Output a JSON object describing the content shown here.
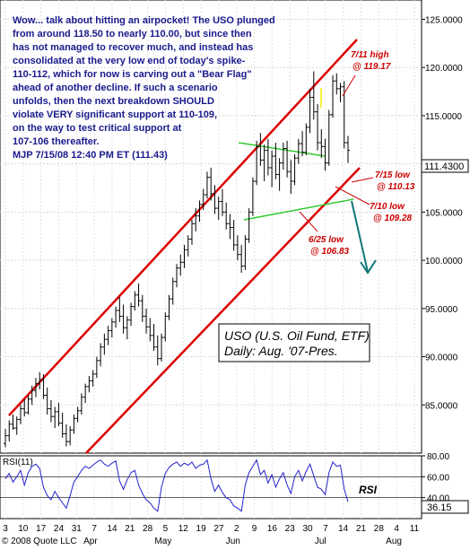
{
  "chart_data": [
    {
      "type": "line",
      "title": "USO (U.S. Oil Fund, ETF)",
      "subtitle": "Daily: Aug. '07-Pres.",
      "ylim": [
        80,
        127
      ],
      "yticks": [
        "125.0000",
        "120.0000",
        "115.0000",
        "110.0000",
        "105.0000",
        "100.0000",
        "95.0000",
        "90.0000",
        "85.0000"
      ],
      "last_price_label": "111.4300",
      "x_tick_labels": [
        "3",
        "10",
        "17",
        "24",
        "31",
        "7",
        "14",
        "21",
        "28",
        "5",
        "12",
        "19",
        "27",
        "2",
        "9",
        "16",
        "23",
        "30",
        "7",
        "14",
        "21",
        "28",
        "4",
        "11"
      ],
      "month_labels": [
        "Apr",
        "May",
        "Jun",
        "Jul",
        "Aug"
      ],
      "copyright": "© 2008 Quote LLC",
      "commentary": [
        "Wow... talk about hitting an airpocket!  The USO plunged",
        "from around 118.50 to nearly 110.00, but since then",
        "has not managed to recover much, and instead has",
        "consolidated at the very low end of today's spike-",
        "110-112, which for now is carving out a \"Bear Flag\"",
        "ahead of another decline. If such a scenario",
        "unfolds, then the next breakdown SHOULD",
        "violate VERY significant support at 110-109,",
        "on the way to test critical support at",
        "107-106 thereafter.",
        "MJP 7/15/08  12:40 PM ET (111.43)"
      ],
      "annotations": [
        {
          "line1": "7/11 high",
          "line2": "@ 119.17"
        },
        {
          "line1": "7/15 low",
          "line2": "@ 110.13"
        },
        {
          "line1": "7/10 low",
          "line2": "@ 109.28"
        },
        {
          "line1": "6/25 low",
          "line2": "@ 106.83"
        }
      ],
      "ohlc": [
        [
          81,
          82.5,
          80.6,
          81.8
        ],
        [
          81.8,
          83.4,
          81.2,
          83
        ],
        [
          83,
          84,
          82.4,
          82.6
        ],
        [
          82.6,
          83.8,
          81.9,
          83.5
        ],
        [
          83.5,
          85,
          83,
          84.6
        ],
        [
          84.6,
          85.6,
          83.8,
          84.2
        ],
        [
          84.2,
          86,
          84,
          85.6
        ],
        [
          85.6,
          87,
          85,
          86.5
        ],
        [
          86.5,
          87.8,
          85.8,
          87.2
        ],
        [
          87.2,
          88.4,
          86.6,
          87.6
        ],
        [
          87.6,
          88.2,
          85.6,
          86
        ],
        [
          86,
          86.8,
          84,
          84.6
        ],
        [
          84.6,
          85.5,
          83.2,
          83.8
        ],
        [
          83.8,
          84.8,
          82.6,
          84.3
        ],
        [
          84.3,
          85.2,
          82.8,
          83.1
        ],
        [
          83.1,
          84.2,
          81.6,
          82
        ],
        [
          82,
          83,
          80.7,
          81.2
        ],
        [
          81.2,
          82.8,
          80.8,
          82.4
        ],
        [
          82.4,
          84,
          82,
          83.6
        ],
        [
          83.6,
          84.8,
          83.2,
          84.4
        ],
        [
          84.4,
          86.2,
          84,
          85.8
        ],
        [
          85.8,
          87.2,
          85.2,
          86.9
        ],
        [
          86.9,
          88,
          86.3,
          87.5
        ],
        [
          87.5,
          88.6,
          86.9,
          88.2
        ],
        [
          88.2,
          90,
          87.8,
          89.6
        ],
        [
          89.6,
          91.4,
          89,
          91
        ],
        [
          91,
          92.4,
          90.2,
          91.8
        ],
        [
          91.8,
          93.2,
          91.2,
          92.7
        ],
        [
          92.7,
          94,
          92,
          93.6
        ],
        [
          93.6,
          95.2,
          93,
          94.8
        ],
        [
          94.8,
          96.2,
          93.6,
          94.2
        ],
        [
          94.2,
          95.4,
          92.4,
          93
        ],
        [
          93,
          94.2,
          91.8,
          93.8
        ],
        [
          93.8,
          95.6,
          93.2,
          95.2
        ],
        [
          95.2,
          96.8,
          94.8,
          96.4
        ],
        [
          96.4,
          97.6,
          95.2,
          95.8
        ],
        [
          95.8,
          96.4,
          93.6,
          94.2
        ],
        [
          94.2,
          95,
          92.4,
          93.1
        ],
        [
          93.1,
          94,
          91.6,
          92.2
        ],
        [
          92.2,
          93.4,
          90.6,
          91
        ],
        [
          91,
          92.2,
          89.1,
          89.8
        ],
        [
          89.8,
          92.4,
          89.5,
          92
        ],
        [
          92,
          94.6,
          91.6,
          94.2
        ],
        [
          94.2,
          96.4,
          93.8,
          96
        ],
        [
          96,
          98.2,
          95.4,
          97.8
        ],
        [
          97.8,
          99.6,
          97.2,
          99.2
        ],
        [
          99.2,
          100.6,
          98.4,
          99.8
        ],
        [
          99.8,
          101.6,
          99.2,
          101.1
        ],
        [
          101.1,
          102.6,
          100.4,
          102.2
        ],
        [
          102.2,
          104.2,
          101.6,
          103.8
        ],
        [
          103.8,
          105.4,
          103,
          104.6
        ],
        [
          104.6,
          106.2,
          104,
          105.8
        ],
        [
          105.8,
          107.4,
          105.2,
          106.8
        ],
        [
          106.8,
          109.2,
          106.4,
          108.6
        ],
        [
          108.6,
          109.6,
          106.2,
          106.9
        ],
        [
          106.9,
          107.8,
          104.8,
          105.4
        ],
        [
          105.4,
          106.6,
          104.2,
          106.1
        ],
        [
          106.1,
          107.4,
          104.6,
          105
        ],
        [
          105,
          106,
          103.2,
          103.8
        ],
        [
          103.8,
          104.8,
          102.2,
          103.4
        ],
        [
          103.4,
          104.2,
          101,
          101.6
        ],
        [
          101.6,
          102.6,
          100,
          100.6
        ],
        [
          100.6,
          101.6,
          98.7,
          99.4
        ],
        [
          99.4,
          102.6,
          99,
          102.2
        ],
        [
          102.2,
          105.4,
          101.8,
          105
        ],
        [
          105,
          108.6,
          104.6,
          108.2
        ],
        [
          108.2,
          112.4,
          107.8,
          111.8
        ],
        [
          111.8,
          113.2,
          109.8,
          110.4
        ],
        [
          110.4,
          112,
          108.2,
          111.4
        ],
        [
          111.4,
          112.6,
          108.8,
          109.6
        ],
        [
          109.6,
          111.4,
          107.6,
          110.8
        ],
        [
          110.8,
          112.2,
          108.4,
          108.9
        ],
        [
          108.9,
          110.6,
          107.2,
          110.1
        ],
        [
          110.1,
          112.2,
          109.4,
          111.6
        ],
        [
          111.6,
          112.4,
          108.6,
          109.2
        ],
        [
          109.2,
          110.4,
          106.9,
          108.2
        ],
        [
          108.2,
          111,
          107.8,
          110.6
        ],
        [
          110.6,
          112.6,
          110,
          112.1
        ],
        [
          112.1,
          113.4,
          110.8,
          111.2
        ],
        [
          111.2,
          114.2,
          110.9,
          113.8
        ],
        [
          113.8,
          117.8,
          113.2,
          116.9
        ],
        [
          116.9,
          119.6,
          114.6,
          115.4
        ],
        [
          115.4,
          116.2,
          111.4,
          112.2
        ],
        [
          112.2,
          113.6,
          110.6,
          111.8
        ],
        [
          111.8,
          112.6,
          109.3,
          110.1
        ],
        [
          110.1,
          115.6,
          109.8,
          115.1
        ],
        [
          115.1,
          119.2,
          114.8,
          118.6
        ],
        [
          118.6,
          119.4,
          117.2,
          117.8
        ],
        [
          117.8,
          118.4,
          116.4,
          118
        ],
        [
          118,
          118.6,
          111.6,
          112.2
        ],
        [
          112.2,
          112.9,
          110.1,
          111.4
        ]
      ],
      "rsi": {
        "ylim": [
          20,
          80
        ],
        "ticks": [
          "80.00",
          "60.00",
          "40.00"
        ],
        "label": "RSI(11)",
        "side_label": "RSI",
        "last_label": "36.15",
        "values": [
          58,
          63,
          55,
          60,
          66,
          52,
          64,
          70,
          72,
          68,
          50,
          42,
          38,
          46,
          40,
          35,
          30,
          42,
          55,
          60,
          66,
          70,
          68,
          71,
          74,
          76,
          72,
          70,
          73,
          75,
          56,
          48,
          57,
          64,
          66,
          52,
          44,
          38,
          35,
          30,
          27,
          50,
          63,
          69,
          72,
          74,
          70,
          73,
          71,
          74,
          68,
          71,
          72,
          76,
          58,
          46,
          52,
          45,
          40,
          38,
          32,
          30,
          27,
          52,
          64,
          70,
          76,
          62,
          66,
          54,
          62,
          50,
          58,
          64,
          52,
          44,
          60,
          66,
          56,
          65,
          72,
          61,
          50,
          48,
          43,
          64,
          74,
          70,
          71,
          48,
          36.15
        ]
      }
    }
  ]
}
